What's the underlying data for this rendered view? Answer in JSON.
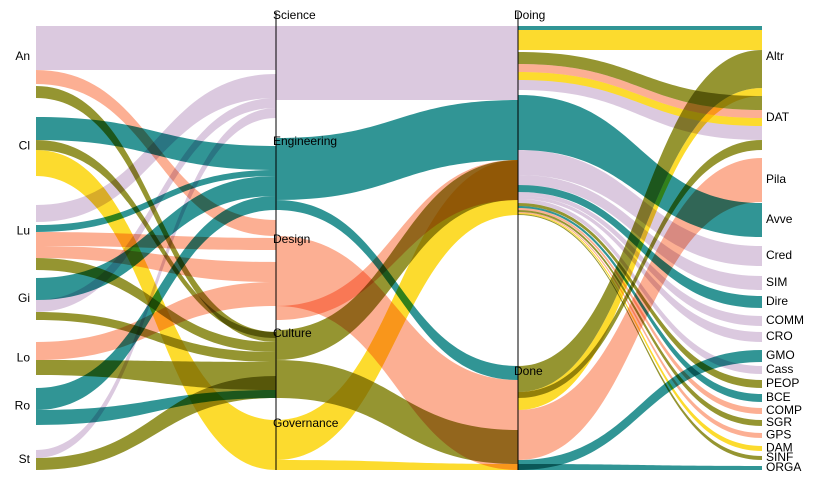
{
  "diagram": {
    "type": "parallel-sets",
    "columns": [
      {
        "key": "person",
        "nodes": [
          "An",
          "Cl",
          "Lu",
          "Gi",
          "Lo",
          "Ro",
          "St"
        ]
      },
      {
        "key": "domain",
        "nodes": [
          "Science",
          "Engineering",
          "Design",
          "Culture",
          "Governance"
        ]
      },
      {
        "key": "status",
        "nodes": [
          "Doing",
          "Done"
        ]
      },
      {
        "key": "project",
        "nodes": [
          "Altr",
          "DAT",
          "Pila",
          "Avve",
          "Cred",
          "SIM",
          "Dire",
          "COMM",
          "CRO",
          "GMO",
          "Cass",
          "PEOP",
          "BCE",
          "COMP",
          "SGR",
          "GPS",
          "DAM",
          "SINF",
          "ORGA"
        ]
      }
    ],
    "colors": {
      "An": "#d8c4dc",
      "Cl": "#1f8c8c",
      "Lu": "#fca88a",
      "Gi": "#8c8c1f",
      "Lo": "#8c8c1f",
      "Ro": "#1f8c8c",
      "St": "#fcd81c"
    },
    "legend_note": ""
  }
}
